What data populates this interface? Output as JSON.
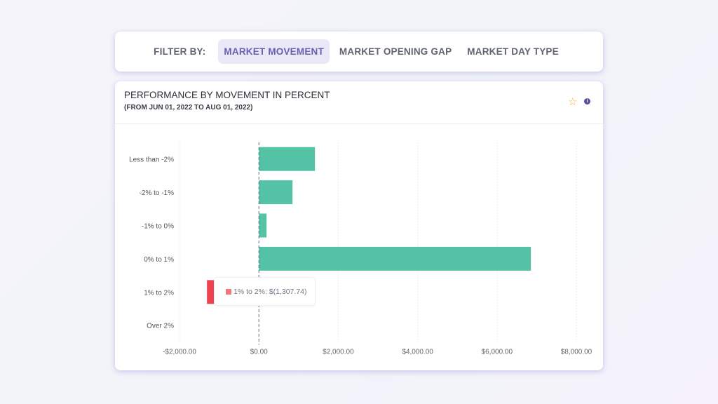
{
  "filter": {
    "label": "FILTER BY:",
    "options": [
      "MARKET MOVEMENT",
      "MARKET OPENING GAP",
      "MARKET DAY TYPE"
    ],
    "active": 0
  },
  "card": {
    "title": "PERFORMANCE BY MOVEMENT IN PERCENT",
    "subtitle": "(FROM JUN 01, 2022 TO AUG 01, 2022)",
    "icons": [
      "star-icon",
      "info-icon"
    ]
  },
  "tooltip": {
    "text": "1% to 2%: $(1,307.74)"
  },
  "chart_data": {
    "type": "bar",
    "orientation": "horizontal",
    "categories": [
      "Less than -2%",
      "-2% to -1%",
      "-1% to 0%",
      "0% to 1%",
      "1% to 2%",
      "Over 2%"
    ],
    "values": [
      1413,
      848,
      194,
      6855,
      -1307.74,
      0
    ],
    "xlim": [
      -2000,
      8000
    ],
    "xticks": [
      -2000,
      0,
      2000,
      4000,
      6000,
      8000
    ],
    "xtick_labels": [
      "-$2,000.00",
      "$0.00",
      "$2,000.00",
      "$4,000.00",
      "$6,000.00",
      "$8,000.00"
    ],
    "colors": {
      "positive": "#53c2a5",
      "negative": "#f2414f"
    },
    "grid": true
  }
}
